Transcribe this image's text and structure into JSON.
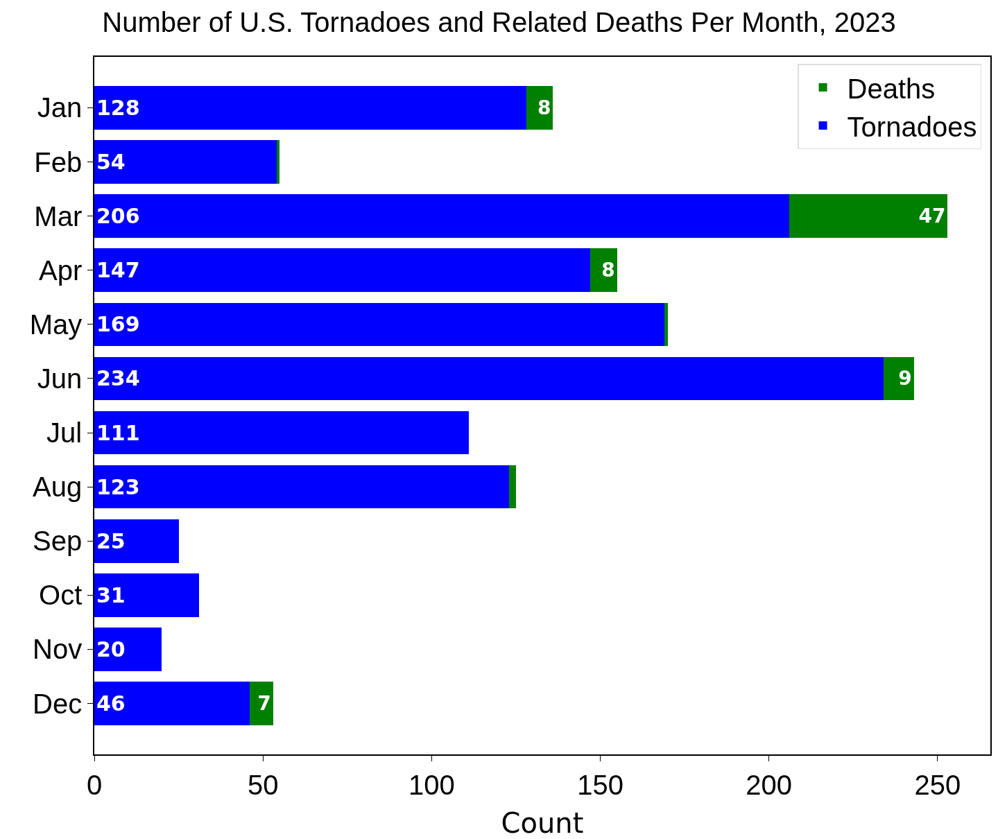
{
  "chart_data": {
    "type": "bar",
    "title": "Number of U.S. Tornadoes and Related Deaths Per Month, 2023",
    "xlabel": "Count",
    "orientation": "horizontal",
    "stacked": true,
    "categories": [
      "Jan",
      "Feb",
      "Mar",
      "Apr",
      "May",
      "Jun",
      "Jul",
      "Aug",
      "Sep",
      "Oct",
      "Nov",
      "Dec"
    ],
    "series": [
      {
        "name": "Tornadoes",
        "color": "#0000ff",
        "values": [
          128,
          54,
          206,
          147,
          169,
          234,
          111,
          123,
          25,
          31,
          20,
          46
        ],
        "value_labels": [
          "128",
          "54",
          "206",
          "147",
          "169",
          "234",
          "111",
          "123",
          "25",
          "31",
          "20",
          "46"
        ]
      },
      {
        "name": "Deaths",
        "color": "#008000",
        "values": [
          8,
          1,
          47,
          8,
          1,
          9,
          0,
          2,
          0,
          0,
          0,
          7
        ],
        "value_labels": [
          "8",
          null,
          "47",
          "8",
          null,
          "9",
          null,
          null,
          null,
          null,
          null,
          "7"
        ]
      }
    ],
    "xlim": [
      0,
      265.65
    ],
    "xticks": [
      0,
      50,
      100,
      150,
      200,
      250
    ],
    "grid": false,
    "legend": "top right"
  }
}
